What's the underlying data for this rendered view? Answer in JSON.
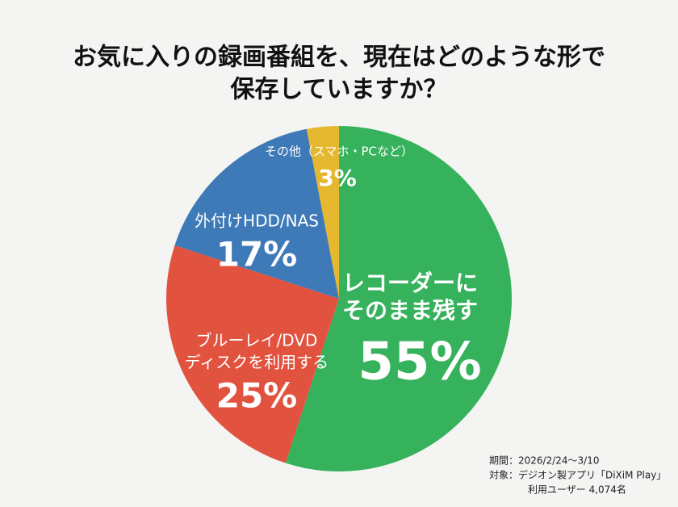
{
  "chart_data": {
    "type": "pie",
    "title": [
      "お気に入りの録画番組を、現在はどのような形で",
      "保存していますか？"
    ],
    "categories": [
      [
        "レコーダーに",
        "そのまま残す"
      ],
      [
        "ブルーレイ/DVD",
        "ディスクを利用する"
      ],
      [
        "外付けHDD/NAS"
      ],
      [
        "その他（スマホ・PCなど）"
      ]
    ],
    "values": [
      55,
      25,
      17,
      3
    ],
    "value_labels": [
      "55%",
      "25%",
      "17%",
      "3%"
    ],
    "colors": [
      "#35b25b",
      "#e1523f",
      "#3e7ab7",
      "#e6b82f"
    ],
    "notes": [
      "期間：2026/2/24～3/10",
      "対象：デジオン製アプリ「DiXiM Play」",
      "利用ユーザー 4,074名"
    ]
  }
}
